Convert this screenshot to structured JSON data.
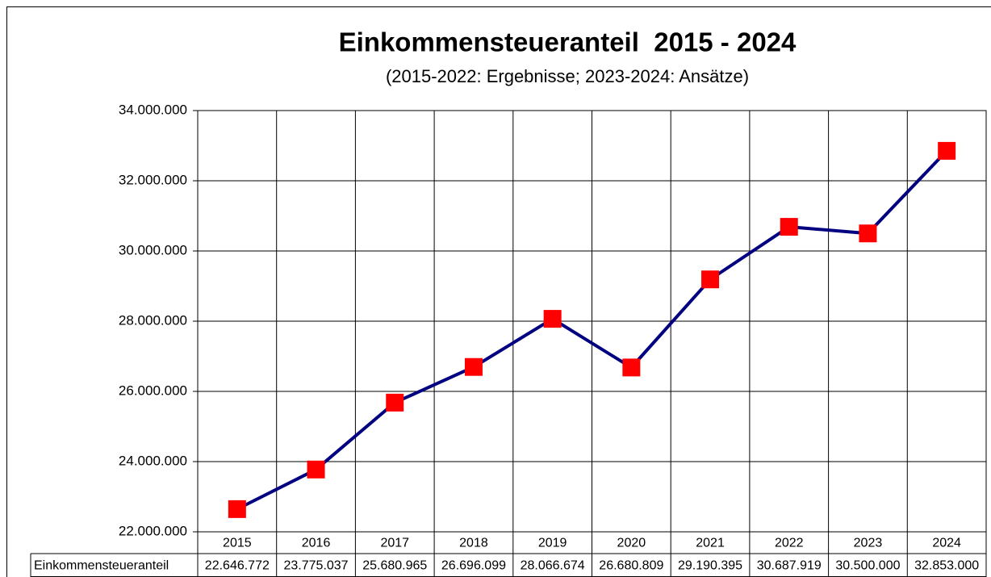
{
  "chart_data": {
    "type": "line",
    "title": "Einkommensteueranteil  2015 - 2024",
    "subtitle": "(2015-2022: Ergebnisse; 2023-2024: Ansätze)",
    "categories": [
      "2015",
      "2016",
      "2017",
      "2018",
      "2019",
      "2020",
      "2021",
      "2022",
      "2023",
      "2024"
    ],
    "series": [
      {
        "name": "Einkommensteueranteil",
        "color": "#000080",
        "marker_color": "#ff0000",
        "values": [
          22646772,
          23775037,
          25680965,
          26696099,
          28066674,
          26680809,
          29190395,
          30687919,
          30500000,
          32853000
        ],
        "value_labels": [
          "22.646.772",
          "23.775.037",
          "25.680.965",
          "26.696.099",
          "28.066.674",
          "26.680.809",
          "29.190.395",
          "30.687.919",
          "30.500.000",
          "32.853.000"
        ]
      }
    ],
    "ylim": [
      22000000,
      34000000
    ],
    "yticks": [
      {
        "value": 22000000,
        "label": "22.000.000"
      },
      {
        "value": 24000000,
        "label": "24.000.000"
      },
      {
        "value": 26000000,
        "label": "26.000.000"
      },
      {
        "value": 28000000,
        "label": "28.000.000"
      },
      {
        "value": 30000000,
        "label": "30.000.000"
      },
      {
        "value": 32000000,
        "label": "32.000.000"
      },
      {
        "value": 34000000,
        "label": "34.000.000"
      }
    ],
    "grid": true
  }
}
